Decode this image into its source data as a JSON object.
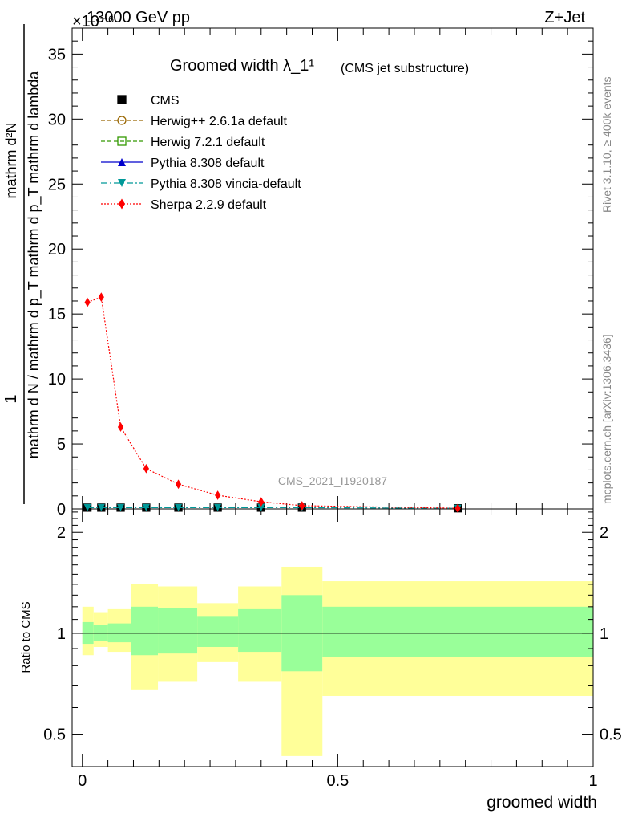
{
  "header": {
    "left": "13000 GeV pp",
    "right": "Z+Jet",
    "scale_exponent": "×10⁻⁶"
  },
  "side_labels": {
    "rivet": "Rivet 3.1.10, ≥ 400k events",
    "mcplots": "mcplots.cern.ch [arXiv:1306.3436]"
  },
  "chart_data": [
    {
      "type": "line",
      "panel": "main",
      "title": "Groomed width λ_1¹",
      "subtitle": "(CMS jet substructure)",
      "ylabel_numerator": "1",
      "ylabel_denominator": "mathrm d N / mathrm d p_T mathrm d p_T mathrm d lambda",
      "ylabel_top": "mathrm d²N",
      "watermark": "CMS_2021_I1920187",
      "ylim": [
        0,
        37
      ],
      "yticks": [
        0,
        5,
        10,
        15,
        20,
        25,
        30,
        35
      ],
      "y_scale_note": "×10⁻⁶",
      "xlim": [
        -0.02,
        1.0
      ],
      "legend_position": "top-left",
      "series": [
        {
          "name": "CMS",
          "color": "#000000",
          "marker": "square-filled",
          "style": "none",
          "x": [
            0.01,
            0.037,
            0.075,
            0.125,
            0.188,
            0.265,
            0.35,
            0.43,
            0.735
          ],
          "y": [
            0.1,
            0.1,
            0.1,
            0.1,
            0.1,
            0.1,
            0.1,
            0.1,
            0.05
          ]
        },
        {
          "name": "Herwig++ 2.6.1a default",
          "color": "#996600",
          "marker": "circle-open",
          "style": "dashed",
          "x": [],
          "y": []
        },
        {
          "name": "Herwig 7.2.1 default",
          "color": "#339900",
          "marker": "square-open",
          "style": "dashed",
          "x": [],
          "y": []
        },
        {
          "name": "Pythia 8.308 default",
          "color": "#0000cc",
          "marker": "triangle-up-filled",
          "style": "solid",
          "x": [],
          "y": []
        },
        {
          "name": "Pythia 8.308 vincia-default",
          "color": "#009999",
          "marker": "triangle-down-filled",
          "style": "dashdot",
          "x": [
            0.01,
            0.037,
            0.075,
            0.125,
            0.188,
            0.265,
            0.35,
            0.43,
            0.735
          ],
          "y": [
            0.1,
            0.1,
            0.1,
            0.1,
            0.1,
            0.1,
            0.1,
            0.1,
            0.05
          ]
        },
        {
          "name": "Sherpa 2.2.9 default",
          "color": "#ff0000",
          "marker": "diamond-filled",
          "style": "dotted",
          "x": [
            0.01,
            0.037,
            0.075,
            0.125,
            0.188,
            0.265,
            0.35,
            0.43,
            0.735
          ],
          "y": [
            15.9,
            16.3,
            6.3,
            3.1,
            1.9,
            1.05,
            0.55,
            0.25,
            0.05
          ]
        }
      ]
    },
    {
      "type": "area",
      "panel": "ratio",
      "ylabel": "Ratio to CMS",
      "xlabel": "groomed width",
      "ylim": [
        0.4,
        2.35
      ],
      "y_scale": "log",
      "yticks": [
        0.5,
        1,
        2
      ],
      "xticks": [
        0,
        0.5,
        1
      ],
      "xlim": [
        -0.02,
        1.0
      ],
      "reference_line": 1,
      "bins": [
        {
          "x0": 0.0,
          "x1": 0.022,
          "stat_lo": 0.93,
          "stat_hi": 1.08,
          "tot_lo": 0.86,
          "tot_hi": 1.2
        },
        {
          "x0": 0.022,
          "x1": 0.05,
          "stat_lo": 0.95,
          "stat_hi": 1.06,
          "tot_lo": 0.91,
          "tot_hi": 1.15
        },
        {
          "x0": 0.05,
          "x1": 0.095,
          "stat_lo": 0.94,
          "stat_hi": 1.07,
          "tot_lo": 0.88,
          "tot_hi": 1.18
        },
        {
          "x0": 0.095,
          "x1": 0.148,
          "stat_lo": 0.86,
          "stat_hi": 1.2,
          "tot_lo": 0.68,
          "tot_hi": 1.4
        },
        {
          "x0": 0.148,
          "x1": 0.225,
          "stat_lo": 0.87,
          "stat_hi": 1.19,
          "tot_lo": 0.72,
          "tot_hi": 1.38
        },
        {
          "x0": 0.225,
          "x1": 0.305,
          "stat_lo": 0.91,
          "stat_hi": 1.12,
          "tot_lo": 0.82,
          "tot_hi": 1.23
        },
        {
          "x0": 0.305,
          "x1": 0.39,
          "stat_lo": 0.88,
          "stat_hi": 1.18,
          "tot_lo": 0.72,
          "tot_hi": 1.38
        },
        {
          "x0": 0.39,
          "x1": 0.47,
          "stat_lo": 0.77,
          "stat_hi": 1.3,
          "tot_lo": 0.43,
          "tot_hi": 1.58
        },
        {
          "x0": 0.47,
          "x1": 1.0,
          "stat_lo": 0.85,
          "stat_hi": 1.2,
          "tot_lo": 0.65,
          "tot_hi": 1.43
        }
      ],
      "band_colors": {
        "stat": "#99ff99",
        "total": "#ffff99"
      }
    }
  ]
}
